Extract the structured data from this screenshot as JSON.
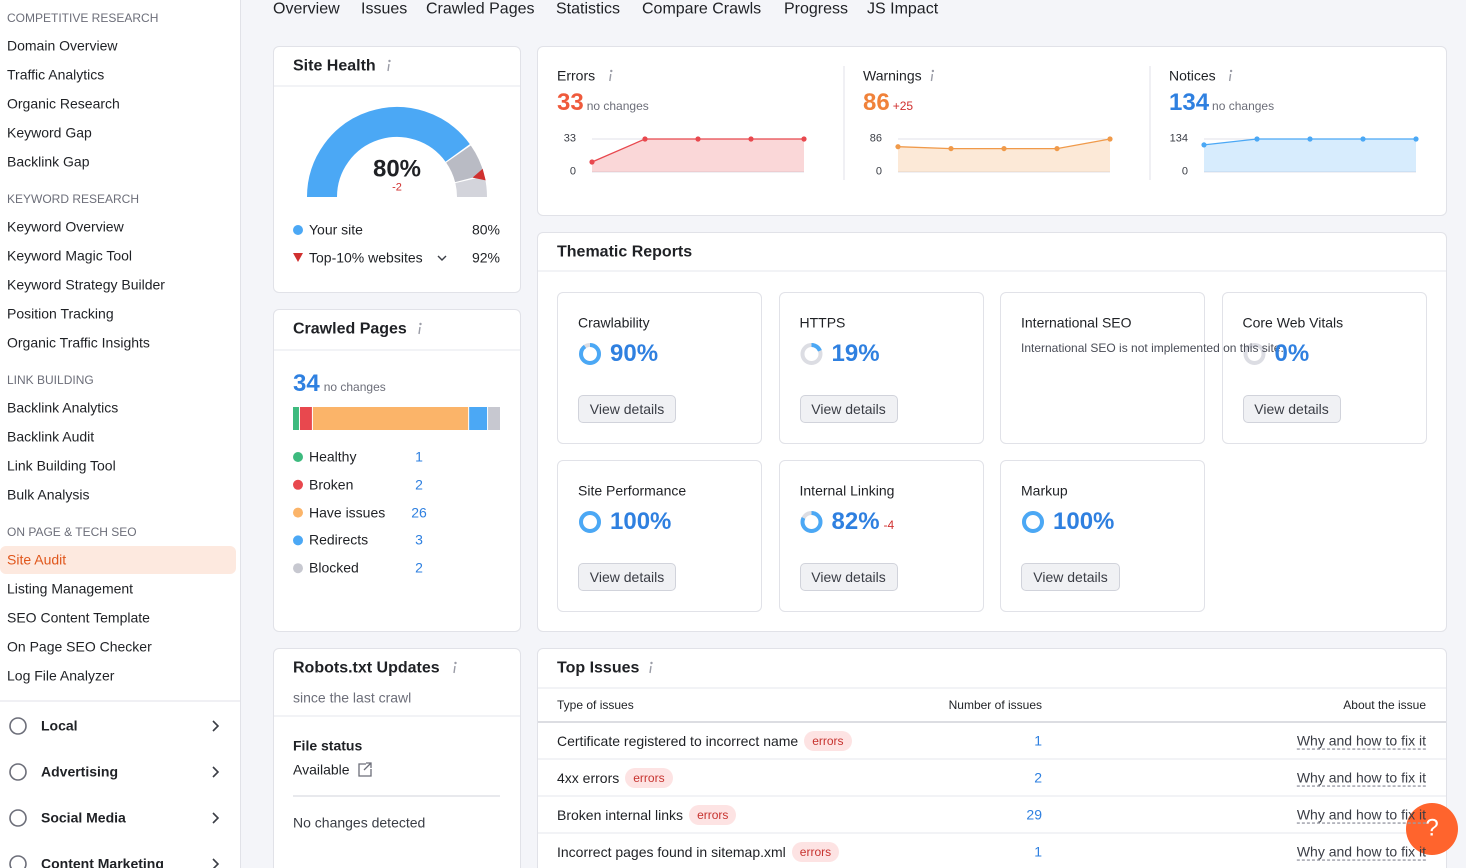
{
  "sidebar": {
    "sections": [
      {
        "title": "COMPETITIVE RESEARCH",
        "items": [
          "Domain Overview",
          "Traffic Analytics",
          "Organic Research",
          "Keyword Gap",
          "Backlink Gap"
        ]
      },
      {
        "title": "KEYWORD RESEARCH",
        "items": [
          "Keyword Overview",
          "Keyword Magic Tool",
          "Keyword Strategy Builder",
          "Position Tracking",
          "Organic Traffic Insights"
        ]
      },
      {
        "title": "LINK BUILDING",
        "items": [
          "Backlink Analytics",
          "Backlink Audit",
          "Link Building Tool",
          "Bulk Analysis"
        ]
      },
      {
        "title": "ON PAGE & TECH SEO",
        "items": [
          "Site Audit",
          "Listing Management",
          "SEO Content Template",
          "On Page SEO Checker",
          "Log File Analyzer"
        ]
      }
    ],
    "groups": [
      "Local",
      "Advertising",
      "Social Media",
      "Content Marketing"
    ]
  },
  "tabs": [
    "Overview",
    "Issues",
    "Crawled Pages",
    "Statistics",
    "Compare Crawls",
    "Progress",
    "JS Impact"
  ],
  "site_health": {
    "title": "Site Health",
    "score": 80,
    "score_label": "80%",
    "change": "-2",
    "rows": [
      {
        "name": "Your site",
        "value": 80,
        "label": "80%",
        "color": "#4ba8f5"
      },
      {
        "name": "Top-10% websites",
        "value": 92,
        "label": "92%",
        "color": "#d0302f"
      }
    ]
  },
  "issues_summary": [
    {
      "name": "Errors",
      "value": 33,
      "change": "no changes",
      "color": "#ef5a3c",
      "line": "#e8484e",
      "values": [
        10,
        33,
        33,
        33,
        33
      ],
      "ylim": [
        0,
        33
      ],
      "yticks": [
        0,
        33
      ]
    },
    {
      "name": "Warnings",
      "value": 86,
      "change": "+25",
      "color": "#f0823a",
      "line": "#f09a4a",
      "values": [
        66,
        61,
        61,
        61,
        86
      ],
      "ylim": [
        0,
        86
      ],
      "yticks": [
        0,
        86
      ]
    },
    {
      "name": "Notices",
      "value": 134,
      "change": "no changes",
      "color": "#2f80e0",
      "line": "#4ba8f5",
      "values": [
        110,
        134,
        134,
        134,
        134
      ],
      "ylim": [
        0,
        134
      ],
      "yticks": [
        0,
        134
      ]
    }
  ],
  "thematic": {
    "title": "Thematic Reports",
    "button": "View details",
    "cards": [
      {
        "name": "Crawlability",
        "value": 90,
        "label": "90%"
      },
      {
        "name": "HTTPS",
        "value": 19,
        "label": "19%"
      },
      {
        "name": "International SEO",
        "note": "International SEO is not implemented on this site."
      },
      {
        "name": "Core Web Vitals",
        "value": 0,
        "label": "0%"
      },
      {
        "name": "Site Performance",
        "value": 100,
        "label": "100%"
      },
      {
        "name": "Internal Linking",
        "value": 82,
        "label": "82%",
        "change": "-4"
      },
      {
        "name": "Markup",
        "value": 100,
        "label": "100%"
      }
    ]
  },
  "crawled_pages": {
    "title": "Crawled Pages",
    "total": 34,
    "change": "no changes",
    "breakdown": [
      {
        "name": "Healthy",
        "value": 1,
        "color": "#3dba7e"
      },
      {
        "name": "Broken",
        "value": 2,
        "color": "#e8484e"
      },
      {
        "name": "Have issues",
        "value": 26,
        "color": "#fbb469"
      },
      {
        "name": "Redirects",
        "value": 3,
        "color": "#4ba8f5"
      },
      {
        "name": "Blocked",
        "value": 2,
        "color": "#c7c8d0"
      }
    ]
  },
  "robots": {
    "title": "Robots.txt Updates",
    "subtitle": "since the last crawl",
    "status_label": "File status",
    "status": "Available",
    "message": "No changes detected"
  },
  "top_issues": {
    "title": "Top Issues",
    "columns": [
      "Type of issues",
      "Number of issues",
      "About the issue"
    ],
    "rows": [
      {
        "issue": "Certificate registered to incorrect name",
        "tag": "errors",
        "count": 1,
        "link": "Why and how to fix it"
      },
      {
        "issue": "4xx errors",
        "tag": "errors",
        "count": 2,
        "link": "Why and how to fix it"
      },
      {
        "issue": "Broken internal links",
        "tag": "errors",
        "count": 29,
        "link": "Why and how to fix it"
      },
      {
        "issue": "Incorrect pages found in sitemap.xml",
        "tag": "errors",
        "count": 1,
        "link": "Why and how to fix it"
      }
    ]
  },
  "help": "?"
}
